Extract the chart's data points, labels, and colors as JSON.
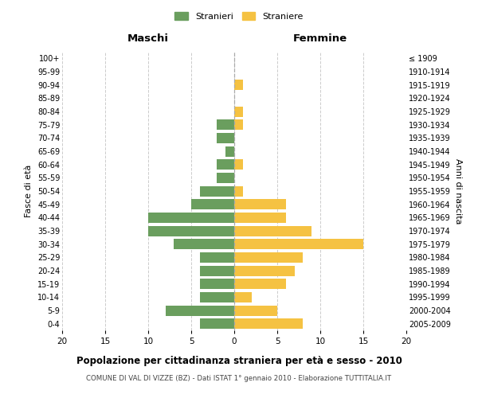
{
  "age_groups": [
    "0-4",
    "5-9",
    "10-14",
    "15-19",
    "20-24",
    "25-29",
    "30-34",
    "35-39",
    "40-44",
    "45-49",
    "50-54",
    "55-59",
    "60-64",
    "65-69",
    "70-74",
    "75-79",
    "80-84",
    "85-89",
    "90-94",
    "95-99",
    "100+"
  ],
  "birth_years": [
    "2005-2009",
    "2000-2004",
    "1995-1999",
    "1990-1994",
    "1985-1989",
    "1980-1984",
    "1975-1979",
    "1970-1974",
    "1965-1969",
    "1960-1964",
    "1955-1959",
    "1950-1954",
    "1945-1949",
    "1940-1944",
    "1935-1939",
    "1930-1934",
    "1925-1929",
    "1920-1924",
    "1915-1919",
    "1910-1914",
    "≤ 1909"
  ],
  "maschi": [
    4,
    8,
    4,
    4,
    4,
    4,
    7,
    10,
    10,
    5,
    4,
    2,
    2,
    1,
    2,
    2,
    0,
    0,
    0,
    0,
    0
  ],
  "femmine": [
    8,
    5,
    2,
    6,
    7,
    8,
    15,
    9,
    6,
    6,
    1,
    0,
    1,
    0,
    0,
    1,
    1,
    0,
    1,
    0,
    0
  ],
  "color_maschi": "#6a9e5e",
  "color_femmine": "#f5c242",
  "title": "Popolazione per cittadinanza straniera per età e sesso - 2010",
  "subtitle": "COMUNE DI VAL DI VIZZE (BZ) - Dati ISTAT 1° gennaio 2010 - Elaborazione TUTTITALIA.IT",
  "xlabel_left": "Maschi",
  "xlabel_right": "Femmine",
  "ylabel_left": "Fasce di età",
  "ylabel_right": "Anni di nascita",
  "legend_maschi": "Stranieri",
  "legend_femmine": "Straniere",
  "xlim": 20,
  "background_color": "#ffffff",
  "grid_color": "#cccccc"
}
